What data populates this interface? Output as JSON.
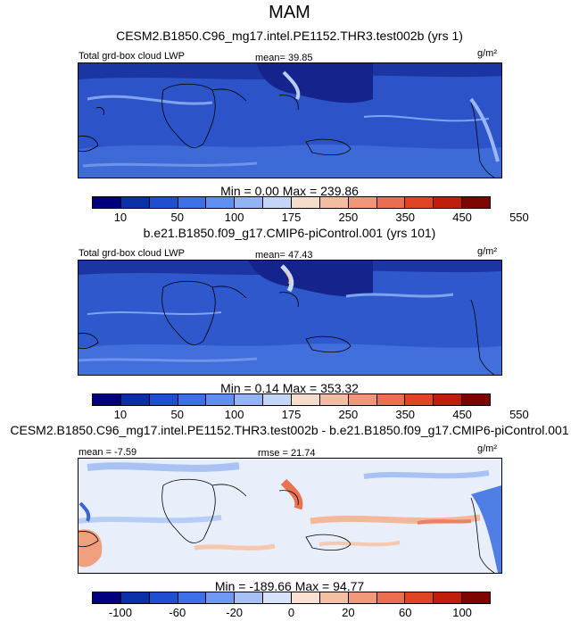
{
  "title": "MAM",
  "panels": [
    {
      "case_name": "CESM2.B1850.C96_mg17.intel.PE1152.THR3.test002b (yrs 1)",
      "left_label": "Total grd-box cloud LWP",
      "center_label": "mean=  39.85",
      "units": "g/m²",
      "minmax": "Min =   0.00 Max = 239.86",
      "colorbar_ticks": [
        "10",
        "50",
        "100",
        "175",
        "250",
        "350",
        "450",
        "550"
      ]
    },
    {
      "case_name": "b.e21.B1850.f09_g17.CMIP6-piControl.001 (yrs 101)",
      "left_label": "Total grd-box cloud LWP",
      "center_label": "mean=  47.43",
      "units": "g/m²",
      "minmax": "Min =   0.14 Max = 353.32",
      "colorbar_ticks": [
        "10",
        "50",
        "100",
        "175",
        "250",
        "350",
        "450",
        "550"
      ]
    },
    {
      "case_name": "CESM2.B1850.C96_mg17.intel.PE1152.THR3.test002b - b.e21.B1850.f09_g17.CMIP6-piControl.001",
      "left_label": "mean =  -7.59",
      "center_label": "rmse =  21.74",
      "units": "g/m²",
      "minmax": "Min = -189.66 Max =  94.77",
      "colorbar_ticks": [
        "-100",
        "-60",
        "-20",
        "0",
        "20",
        "60",
        "100"
      ]
    }
  ],
  "colors": {
    "abs_scale": [
      "#00007f",
      "#0a2fa8",
      "#1f4fd0",
      "#3d6fe6",
      "#5f8ff0",
      "#93b4f4",
      "#c3d6f8",
      "#f6ddcb",
      "#f4bca0",
      "#f2967a",
      "#ec6e50",
      "#e04424",
      "#c11d0c",
      "#7e0400"
    ],
    "diff_scale": [
      "#00007f",
      "#0a2fa8",
      "#1f4fd0",
      "#3d6fe6",
      "#6f98f2",
      "#a6c0f6",
      "#d6e3fa",
      "#fae0d0",
      "#f4c0a4",
      "#f2987c",
      "#ec6e50",
      "#e04424",
      "#c11d0c",
      "#7e0400"
    ]
  }
}
